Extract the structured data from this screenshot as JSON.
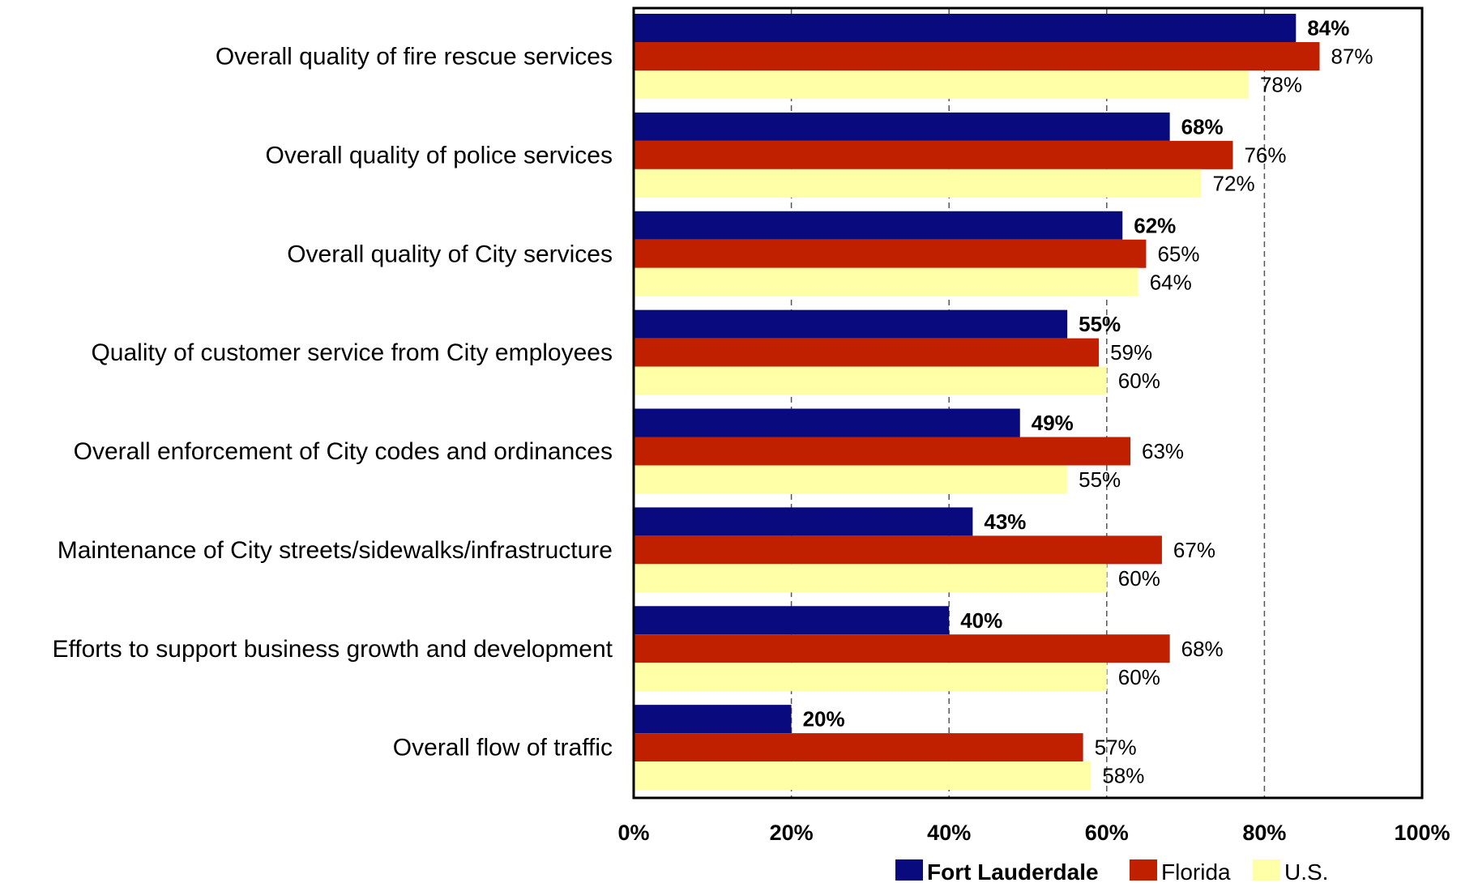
{
  "chart_data": {
    "type": "bar",
    "orientation": "horizontal",
    "categories": [
      "Overall quality of fire rescue services",
      "Overall quality of police services",
      "Overall quality of City services",
      "Quality of customer service from City employees",
      "Overall enforcement of City codes and ordinances",
      "Maintenance of City streets/sidewalks/infrastructure",
      "Efforts to support business growth and development",
      "Overall flow of traffic"
    ],
    "series": [
      {
        "name": "Fort Lauderdale",
        "color": "#0a0a7f",
        "values": [
          84,
          68,
          62,
          55,
          49,
          43,
          40,
          20
        ],
        "labels": [
          "84%",
          "68%",
          "62%",
          "55%",
          "49%",
          "43%",
          "40%",
          "20%"
        ],
        "label_bold": true
      },
      {
        "name": "Florida",
        "color": "#c01f00",
        "values": [
          87,
          76,
          65,
          59,
          63,
          67,
          68,
          57
        ],
        "labels": [
          "87%",
          "76%",
          "65%",
          "59%",
          "63%",
          "67%",
          "68%",
          "57%"
        ],
        "label_bold": false
      },
      {
        "name": "U.S.",
        "color": "#ffffa8",
        "values": [
          78,
          72,
          64,
          60,
          55,
          60,
          60,
          58
        ],
        "labels": [
          "78%",
          "72%",
          "64%",
          "60%",
          "55%",
          "60%",
          "60%",
          "58%"
        ],
        "label_bold": false
      }
    ],
    "xlim": [
      0,
      100
    ],
    "ticks": [
      0,
      20,
      40,
      60,
      80,
      100
    ],
    "tick_labels": [
      "0%",
      "20%",
      "40%",
      "60%",
      "80%",
      "100%"
    ],
    "grid": "vertical dashed",
    "legend_position": "bottom-right"
  }
}
